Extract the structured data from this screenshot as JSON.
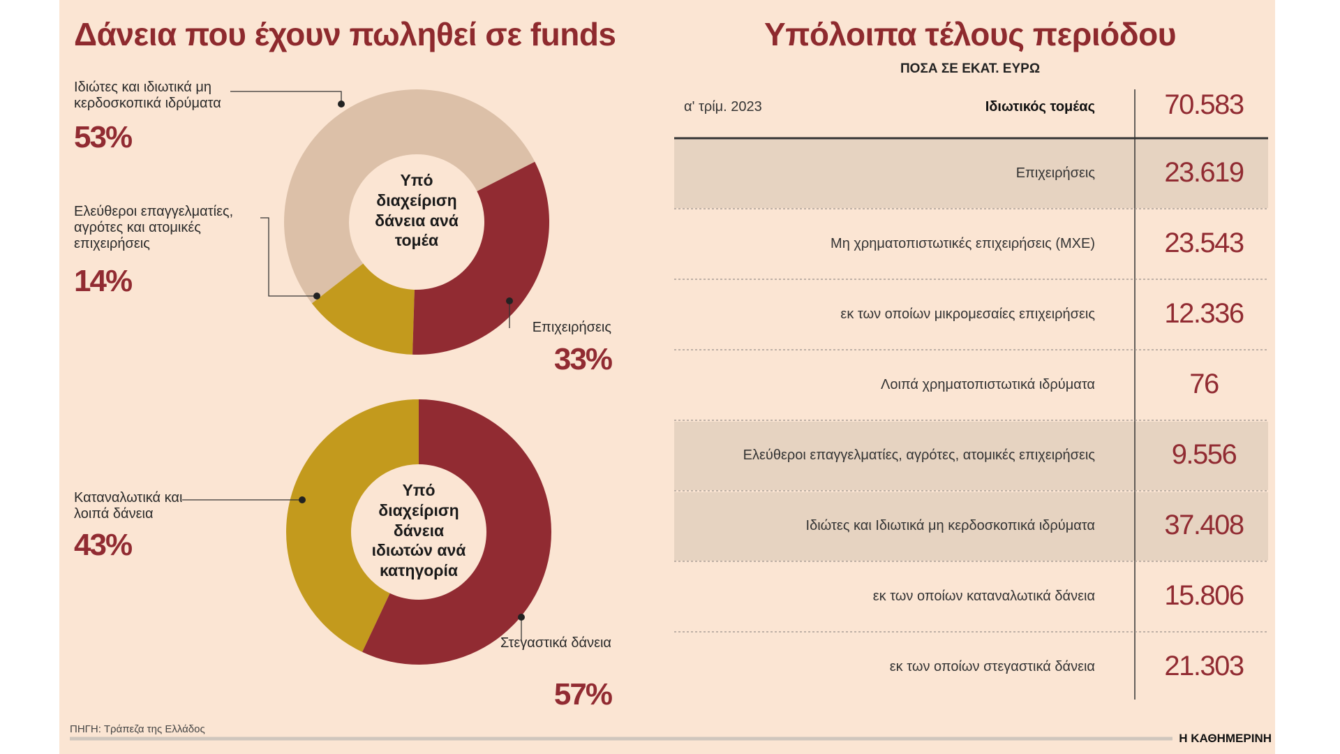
{
  "left_title": "Δάνεια που έχουν πωληθεί σε funds",
  "chart_data": [
    {
      "type": "donut",
      "title": "Υπό διαχείριση δάνεια ανά τομέα",
      "categories": [
        "Ιδιώτες και ιδιωτικά μη κερδοσκοπικά ιδρύματα",
        "Ελεύθεροι επαγγελματίες, αγρότες και ατομικές επιχειρήσεις",
        "Επιχειρήσεις"
      ],
      "values": [
        53,
        14,
        33
      ],
      "value_labels": [
        "53%",
        "14%",
        "33%"
      ],
      "colors": [
        "#dcc0a8",
        "#c39a1d",
        "#912b32"
      ]
    },
    {
      "type": "donut",
      "title": "Υπό διαχείριση δάνεια ιδιωτών ανά κατηγορία",
      "categories": [
        "Καταναλωτικά και λοιπά δάνεια",
        "Στεγαστικά δάνεια"
      ],
      "values": [
        43,
        57
      ],
      "value_labels": [
        "43%",
        "57%"
      ],
      "colors": [
        "#c39a1d",
        "#912b32"
      ]
    }
  ],
  "table": {
    "title": "Υπόλοιπα τέλους περιόδου",
    "subtitle": "ΠΟΣΑ ΣΕ ΕΚΑΤ. ΕΥΡΩ",
    "header": {
      "period": "α' τρίμ. 2023",
      "label": "Ιδιωτικός τομέας",
      "value": "70.583"
    },
    "rows": [
      {
        "label": "Επιχειρήσεις",
        "value": "23.619",
        "highlight": true
      },
      {
        "label": "Μη χρηματοπιστωτικές επιχειρήσεις (ΜΧΕ)",
        "value": "23.543",
        "highlight": false
      },
      {
        "label": "εκ των οποίων μικρομεσαίες επιχειρήσεις",
        "value": "12.336",
        "highlight": false
      },
      {
        "label": "Λοιπά χρηματοπιστωτικά ιδρύματα",
        "value": "76",
        "highlight": false
      },
      {
        "label": "Ελεύθεροι επαγγελματίες, αγρότες, ατομικές επιχειρήσεις",
        "value": "9.556",
        "highlight": true
      },
      {
        "label": "Ιδιώτες και Ιδιωτικά μη κερδοσκοπικά ιδρύματα",
        "value": "37.408",
        "highlight": true
      },
      {
        "label": "εκ των οποίων καταναλωτικά δάνεια",
        "value": "15.806",
        "highlight": false
      },
      {
        "label": "εκ των οποίων στεγαστικά δάνεια",
        "value": "21.303",
        "highlight": false
      }
    ]
  },
  "source": "ΠΗΓΗ: Τράπεζα της Ελλάδος",
  "brand": "Η ΚΑΘΗΜΕΡΙΝΗ"
}
